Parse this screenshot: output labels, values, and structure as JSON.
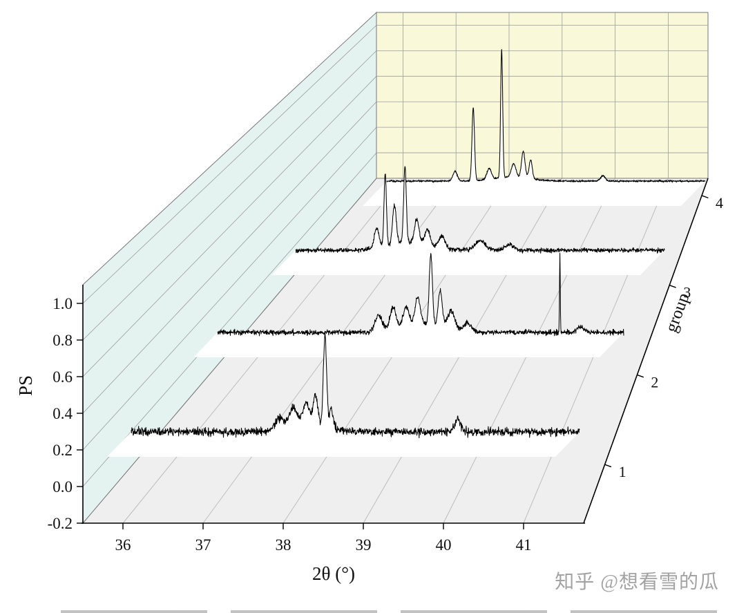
{
  "watermark": {
    "text": "知乎 @想看雪的瓜",
    "color": "#a3a3a3"
  },
  "colors": {
    "left_wall": "#e4f3ef",
    "back_wall": "#f9f8d8",
    "floor": "#efefef",
    "grid_wall": "#9c9c9c",
    "grid_floor": "#bdbdbd",
    "outline": "#787878",
    "axis": "#000000",
    "trace": "#000000",
    "fill_under": "#ffffff"
  },
  "chart_data": {
    "type": "line",
    "variant": "3d_waterfall_xrd",
    "title": "",
    "xlabel": "2θ (°)",
    "ylabel": "PS",
    "zlabel": "group",
    "x_range": [
      35.5,
      41.75
    ],
    "x_ticks": [
      36,
      37,
      38,
      39,
      40,
      41
    ],
    "y_range": [
      -0.2,
      1.1
    ],
    "y_ticks": [
      -0.2,
      0.0,
      0.2,
      0.4,
      0.6,
      0.8,
      1.0
    ],
    "y_tick_labels": [
      "-0.2",
      "0.0",
      "0.2",
      "0.4",
      "0.6",
      "0.8",
      "1.0"
    ],
    "z_ticks": [
      1,
      2,
      3,
      4
    ],
    "grid": true,
    "legend": false,
    "series": [
      {
        "name": "group 1",
        "baseline_ps": 0.3,
        "noise_ps": 0.016,
        "data_range": [
          36.1,
          41.7
        ],
        "peaks": [
          {
            "two_theta": 37.95,
            "height": 0.06,
            "width": 0.05
          },
          {
            "two_theta": 38.12,
            "height": 0.1,
            "width": 0.05
          },
          {
            "two_theta": 38.28,
            "height": 0.12,
            "width": 0.04
          },
          {
            "two_theta": 38.4,
            "height": 0.16,
            "width": 0.03
          },
          {
            "two_theta": 38.52,
            "height": 0.5,
            "width": 0.02
          },
          {
            "two_theta": 38.6,
            "height": 0.1,
            "width": 0.025
          },
          {
            "two_theta": 40.18,
            "height": 0.07,
            "width": 0.035
          },
          {
            "two_theta": 38.3,
            "height": 0.04,
            "width": 0.25
          }
        ]
      },
      {
        "name": "group 2",
        "baseline_ps": 0.3,
        "noise_ps": 0.011,
        "data_range": [
          36.1,
          41.7
        ],
        "peaks": [
          {
            "two_theta": 38.32,
            "height": 0.09,
            "width": 0.05
          },
          {
            "two_theta": 38.52,
            "height": 0.13,
            "width": 0.04
          },
          {
            "two_theta": 38.7,
            "height": 0.11,
            "width": 0.04
          },
          {
            "two_theta": 38.86,
            "height": 0.16,
            "width": 0.035
          },
          {
            "two_theta": 39.04,
            "height": 0.42,
            "width": 0.022
          },
          {
            "two_theta": 39.17,
            "height": 0.22,
            "width": 0.028
          },
          {
            "two_theta": 39.32,
            "height": 0.11,
            "width": 0.05
          },
          {
            "two_theta": 39.55,
            "height": 0.05,
            "width": 0.06
          },
          {
            "two_theta": 40.82,
            "height": 0.48,
            "width": 0.005
          },
          {
            "two_theta": 41.1,
            "height": 0.03,
            "width": 0.05
          },
          {
            "two_theta": 38.9,
            "height": 0.05,
            "width": 0.3
          }
        ]
      },
      {
        "name": "group 3",
        "baseline_ps": 0.3,
        "noise_ps": 0.01,
        "data_range": [
          36.1,
          41.7
        ],
        "peaks": [
          {
            "two_theta": 37.33,
            "height": 0.13,
            "width": 0.035
          },
          {
            "two_theta": 37.46,
            "height": 0.48,
            "width": 0.018
          },
          {
            "two_theta": 37.6,
            "height": 0.26,
            "width": 0.028
          },
          {
            "two_theta": 37.76,
            "height": 0.5,
            "width": 0.02
          },
          {
            "two_theta": 37.94,
            "height": 0.16,
            "width": 0.035
          },
          {
            "two_theta": 38.1,
            "height": 0.11,
            "width": 0.04
          },
          {
            "two_theta": 38.32,
            "height": 0.08,
            "width": 0.05
          },
          {
            "two_theta": 38.9,
            "height": 0.06,
            "width": 0.08
          },
          {
            "two_theta": 39.35,
            "height": 0.04,
            "width": 0.06
          },
          {
            "two_theta": 37.8,
            "height": 0.05,
            "width": 0.3
          }
        ]
      },
      {
        "name": "group 4",
        "baseline_ps": 0.3,
        "noise_ps": 0.005,
        "data_range": [
          36.1,
          41.7
        ],
        "peaks": [
          {
            "two_theta": 37.3,
            "height": 0.07,
            "width": 0.04
          },
          {
            "two_theta": 37.62,
            "height": 0.54,
            "width": 0.022
          },
          {
            "two_theta": 37.9,
            "height": 0.08,
            "width": 0.04
          },
          {
            "two_theta": 38.12,
            "height": 0.95,
            "width": 0.018
          },
          {
            "two_theta": 38.33,
            "height": 0.1,
            "width": 0.04
          },
          {
            "two_theta": 38.5,
            "height": 0.2,
            "width": 0.03
          },
          {
            "two_theta": 38.63,
            "height": 0.14,
            "width": 0.028
          },
          {
            "two_theta": 39.9,
            "height": 0.04,
            "width": 0.04
          },
          {
            "two_theta": 38.3,
            "height": 0.03,
            "width": 0.3
          }
        ]
      }
    ]
  }
}
